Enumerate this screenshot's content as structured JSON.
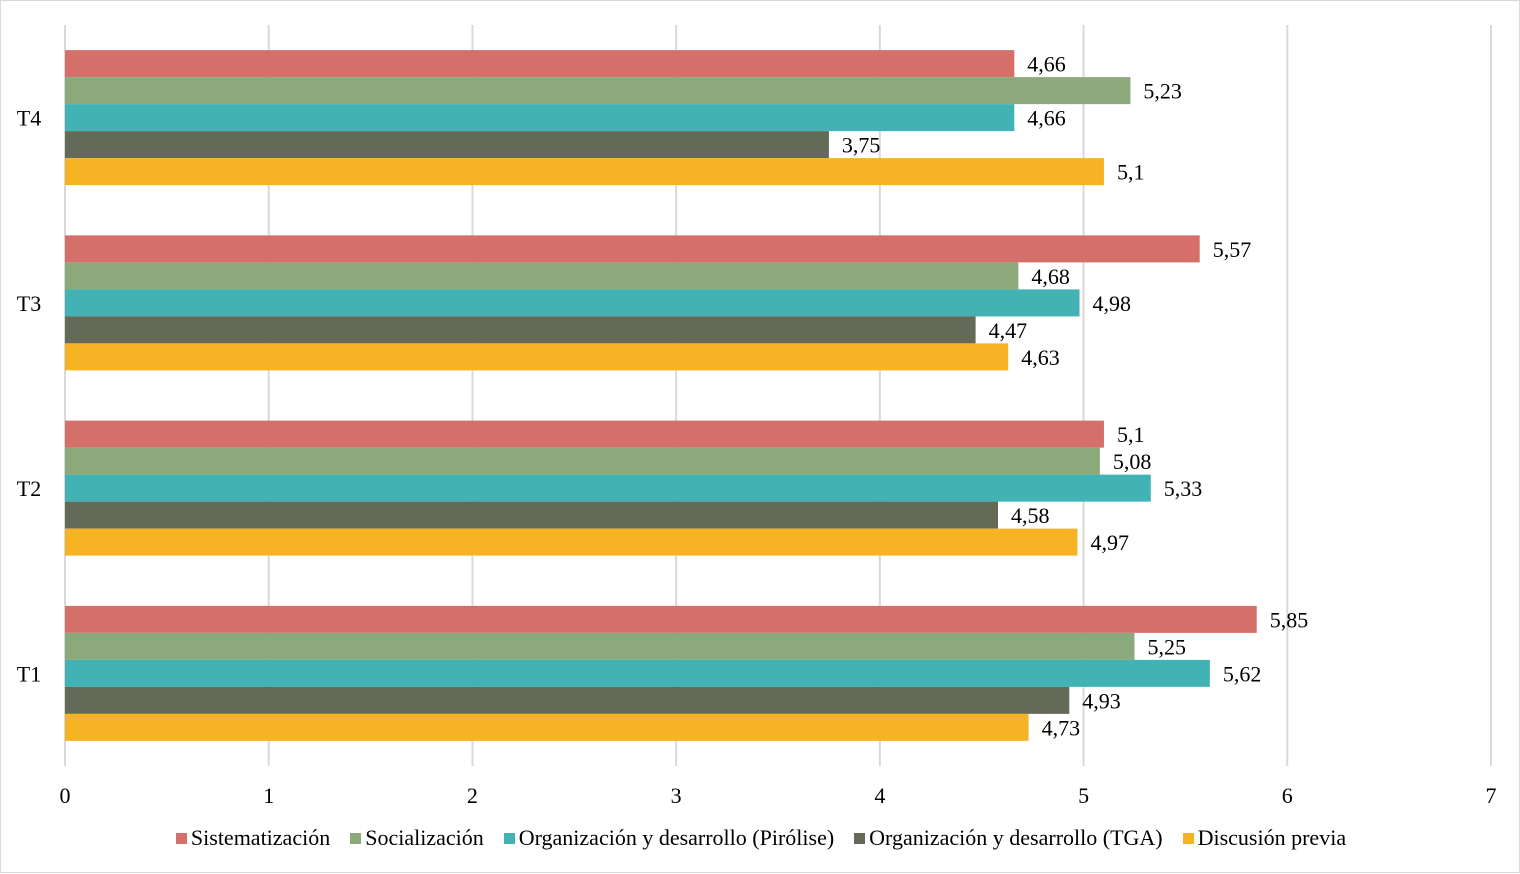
{
  "chart_data": {
    "type": "bar",
    "orientation": "horizontal",
    "title": "",
    "xlabel": "",
    "ylabel": "",
    "xlim": [
      0,
      7
    ],
    "x_ticks": [
      "0",
      "1",
      "2",
      "3",
      "4",
      "5",
      "6",
      "7"
    ],
    "grid": true,
    "legend_position": "bottom",
    "categories": [
      "T4",
      "T3",
      "T2",
      "T1"
    ],
    "series": [
      {
        "name": "Sistematización",
        "color": "#d46f6a",
        "values": [
          4.66,
          5.57,
          5.1,
          5.85
        ],
        "labels": [
          "4,66",
          "5,57",
          "5,1",
          "5,85"
        ]
      },
      {
        "name": "Socialización",
        "color": "#8ca97b",
        "values": [
          5.23,
          4.68,
          5.08,
          5.25
        ],
        "labels": [
          "5,23",
          "4,68",
          "5,08",
          "5,25"
        ]
      },
      {
        "name": "Organización y desarrollo (Pirólise)",
        "color": "#42b2b4",
        "values": [
          4.66,
          4.98,
          5.33,
          5.62
        ],
        "labels": [
          "4,66",
          "4,98",
          "5,33",
          "5,62"
        ]
      },
      {
        "name": "Organización y desarrollo (TGA)",
        "color": "#656a58",
        "values": [
          3.75,
          4.47,
          4.58,
          4.93
        ],
        "labels": [
          "3,75",
          "4,47",
          "4,58",
          "4,93"
        ]
      },
      {
        "name": "Discusión previa",
        "color": "#f6b324",
        "values": [
          5.1,
          4.63,
          4.97,
          4.73
        ],
        "labels": [
          "5,1",
          "4,63",
          "4,97",
          "4,73"
        ]
      }
    ]
  }
}
